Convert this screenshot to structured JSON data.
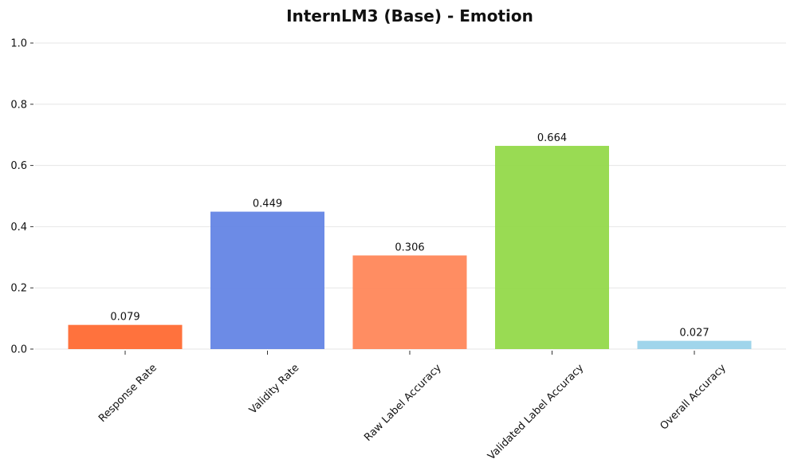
{
  "chart_data": {
    "type": "bar",
    "title": "InternLM3 (Base) - Emotion",
    "xlabel": "",
    "ylabel": "",
    "categories": [
      "Response Rate",
      "Validity Rate",
      "Raw Label Accuracy",
      "Validated Label Accuracy",
      "Overall Accuracy"
    ],
    "values": [
      0.079,
      0.449,
      0.306,
      0.664,
      0.027
    ],
    "value_labels": [
      "0.079",
      "0.449",
      "0.306",
      "0.664",
      "0.027"
    ],
    "colors": [
      "#ff6a33",
      "#6485e5",
      "#ff875a",
      "#93d94a",
      "#9bd3ea"
    ],
    "ylim": [
      0,
      1.0
    ],
    "yticks": [
      0.0,
      0.2,
      0.4,
      0.6,
      0.8,
      1.0
    ],
    "ytick_labels": [
      "0.0",
      "0.2",
      "0.4",
      "0.6",
      "0.8",
      "1.0"
    ],
    "grid": true,
    "legend": "none"
  }
}
